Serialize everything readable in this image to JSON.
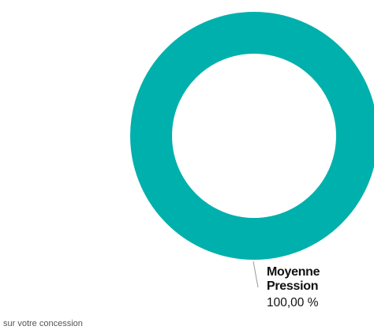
{
  "chart_data": {
    "type": "pie",
    "variant": "donut",
    "slices": [
      {
        "label_lines": [
          "Moyenne",
          "Pression"
        ],
        "value": 100,
        "display_value": "100,00 %",
        "color": "#00b0ac"
      }
    ],
    "title": "",
    "caption": "sur votre concession"
  },
  "colors": {
    "leader_line": "#999999",
    "text": "#111111",
    "caption_text": "#555555"
  }
}
